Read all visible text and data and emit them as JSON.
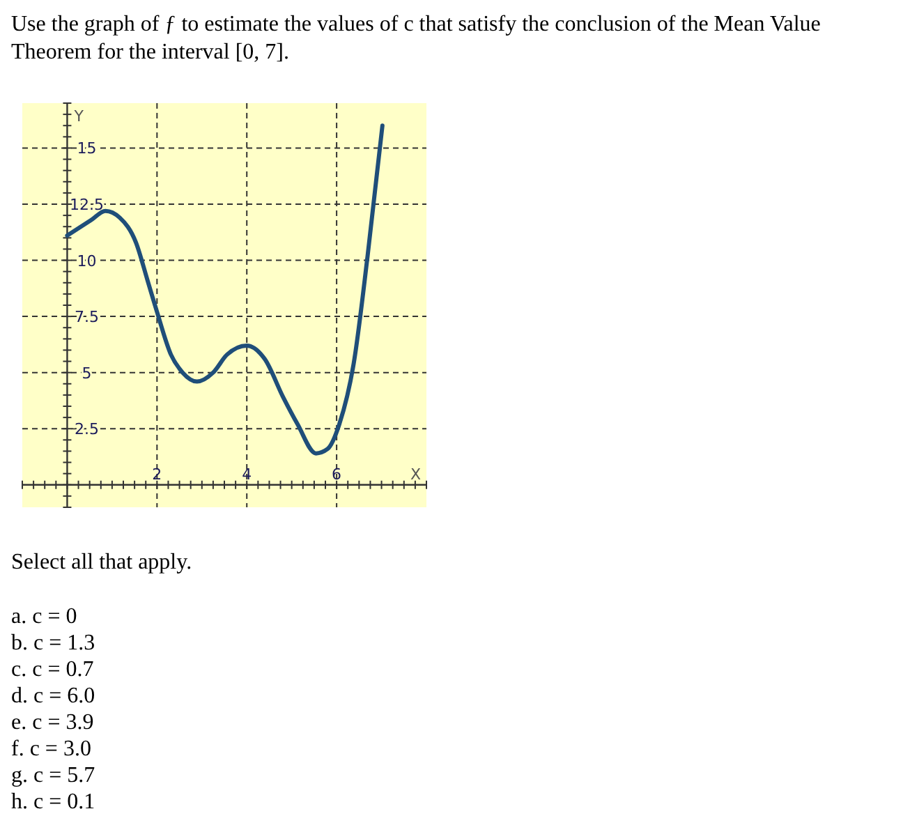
{
  "chart_data": {
    "type": "line",
    "title": "Use the graph of ƒ to estimate the values of c that satisfy the conclusion of the Mean Value Theorem for the interval [0, 7].",
    "xlabel": "X",
    "ylabel": "Y",
    "x": [
      0,
      0.54,
      0.85,
      1.17,
      1.53,
      1.79,
      2.0,
      2.31,
      2.57,
      2.89,
      3.25,
      3.56,
      4.0,
      4.4,
      4.81,
      5.13,
      5.54,
      5.8,
      6.06,
      6.38,
      6.69,
      7.02
    ],
    "series": [
      {
        "color": "#1f4e79",
        "values": [
          11.1,
          11.8,
          12.2,
          11.9,
          10.8,
          9.1,
          7.7,
          5.8,
          5.0,
          4.6,
          5.0,
          5.8,
          6.2,
          5.6,
          3.9,
          2.7,
          1.4,
          1.6,
          2.7,
          5.4,
          10.2,
          16.0
        ]
      }
    ],
    "xlim": [
      -1,
      8
    ],
    "ylim": [
      -1,
      17
    ],
    "xticks": [
      2,
      4,
      6
    ],
    "yticks": [
      2.5,
      5,
      7.5,
      10,
      12.5,
      15
    ],
    "grid": true,
    "marker": "none",
    "line_style": "solid",
    "annotations": [
      "Select all that apply.",
      "a. c = 0",
      "b. c = 1.3",
      "c. c = 0.7",
      "d. c = 6.0",
      "e. c = 3.9",
      "f. c = 3.0",
      "g. c = 5.7",
      "h. c = 0.1"
    ]
  }
}
